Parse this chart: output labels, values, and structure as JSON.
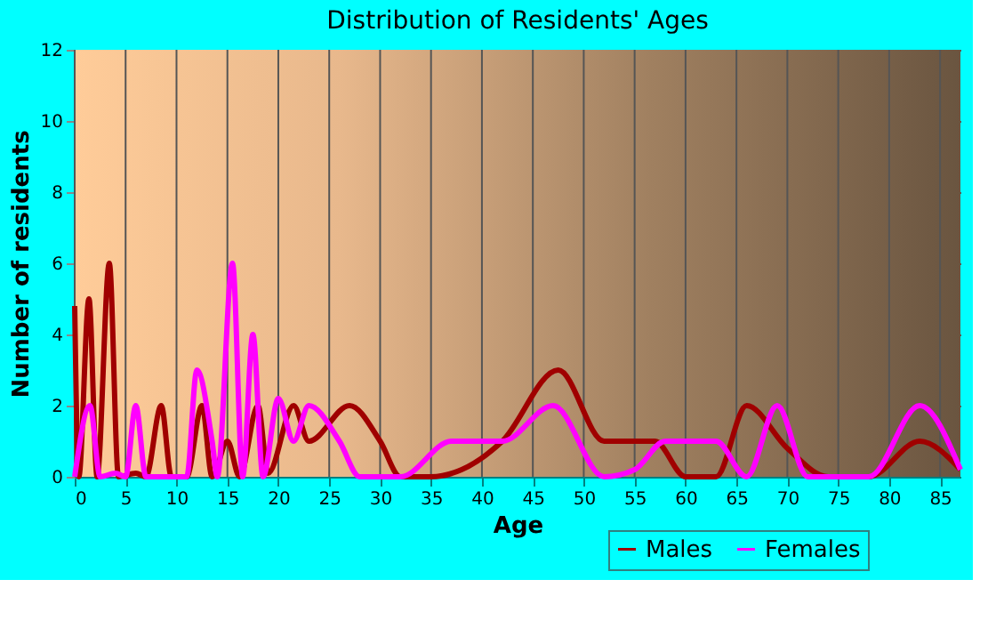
{
  "chart_data": {
    "type": "line",
    "title": "Distribution of Residents' Ages",
    "xlabel": "Age",
    "ylabel": "Number of residents",
    "xlim": [
      0,
      87
    ],
    "xticks": [
      0,
      5,
      10,
      15,
      20,
      25,
      30,
      35,
      40,
      45,
      50,
      55,
      60,
      65,
      70,
      75,
      80,
      85
    ],
    "ylim": [
      0,
      12
    ],
    "yticks": [
      0,
      2,
      4,
      6,
      8,
      10,
      12
    ],
    "grid": true,
    "legend": "bottom right",
    "series": [
      {
        "name": "Males",
        "color": "#a00000",
        "x": [
          0,
          0.4,
          1.4,
          2.2,
          3.4,
          4.3,
          6,
          7,
          8.5,
          9.5,
          11,
          12.5,
          13.5,
          15,
          16.2,
          18,
          19,
          21.5,
          23,
          27,
          30,
          32,
          35,
          38,
          42,
          47.5,
          52,
          57,
          60,
          63,
          66,
          70,
          74,
          78,
          83,
          87
        ],
        "values": [
          4.8,
          0,
          5,
          0,
          6,
          0,
          0.1,
          0,
          2,
          0,
          0,
          2,
          0,
          1,
          0,
          2,
          0.1,
          2,
          1,
          2,
          1,
          0,
          0,
          0.2,
          1,
          3,
          1,
          1,
          0,
          0,
          2,
          0.8,
          0,
          0,
          1,
          0.2
        ]
      },
      {
        "name": "Females",
        "color": "#ff00ff",
        "x": [
          0,
          1.5,
          2.5,
          4,
          5,
          6,
          7,
          8,
          11,
          12,
          13.5,
          14,
          15.5,
          16.5,
          17.5,
          18.5,
          20,
          21.5,
          23,
          26,
          28,
          32,
          37,
          42,
          47,
          52,
          55,
          58,
          63,
          66,
          69,
          72,
          78,
          83,
          87
        ],
        "values": [
          0,
          2,
          0,
          0.1,
          0,
          2,
          0,
          0,
          0,
          3,
          1,
          0,
          6,
          0,
          4,
          0,
          2.2,
          1,
          2,
          1,
          0,
          0,
          1,
          1,
          2,
          0,
          0.2,
          1,
          1,
          0,
          2,
          0,
          0,
          2,
          0.2
        ]
      }
    ]
  }
}
